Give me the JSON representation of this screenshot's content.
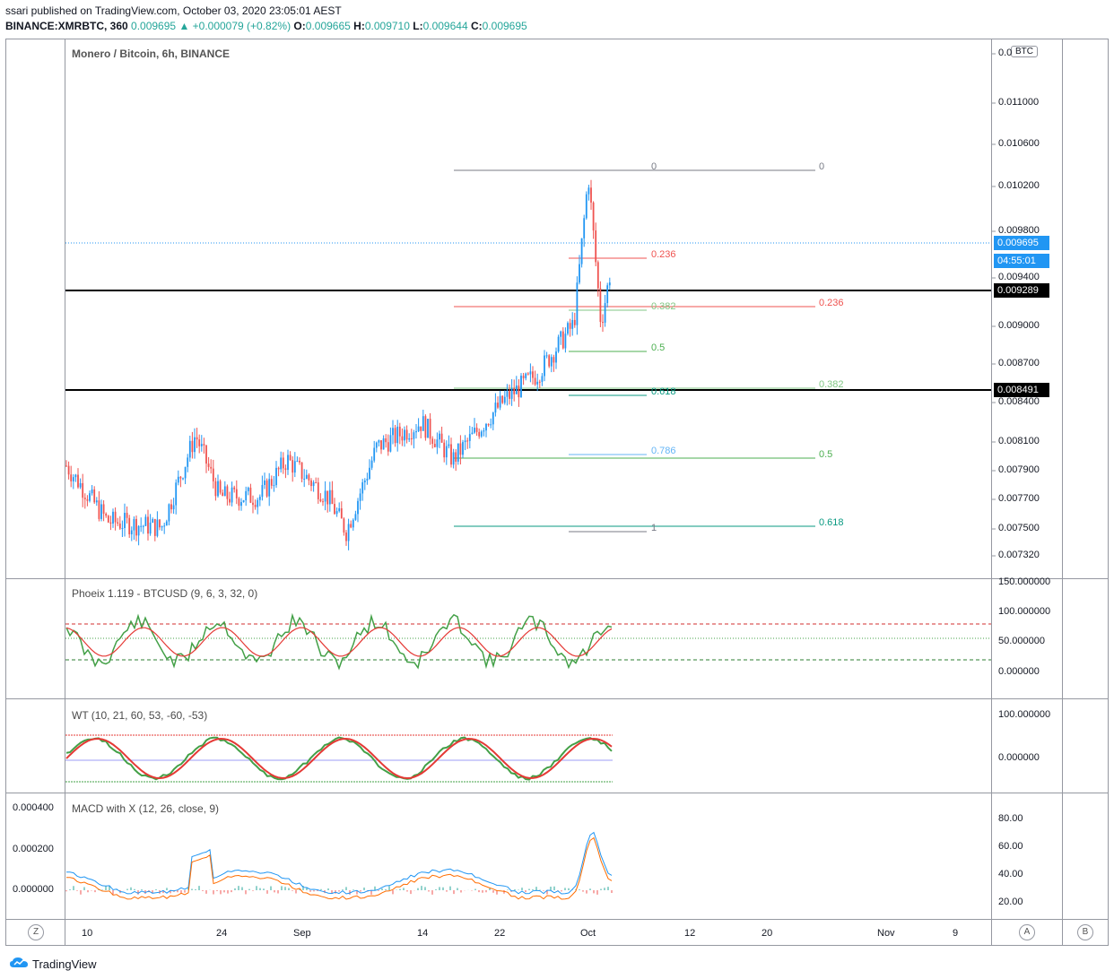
{
  "header": {
    "publisher": "ssari published on TradingView.com, October 03, 2020 23:05:01 AEST",
    "symbol": "BINANCE:XMRBTC, 360",
    "last": "0.009695",
    "change": "▲ +0.000079 (+0.82%)",
    "open_label": "O:",
    "open": "0.009665",
    "high_label": "H:",
    "high": "0.009710",
    "low_label": "L:",
    "low": "0.009644",
    "close_label": "C:",
    "close": "0.009695"
  },
  "main_pane": {
    "title": "Monero / Bitcoin, 6h, BINANCE",
    "currency_badge": "BTC",
    "price_ticks": [
      "0.0",
      "0.011000",
      "0.010600",
      "0.010200",
      "0.009800",
      "0.009400",
      "0.009000",
      "0.008700",
      "0.008400",
      "0.008100",
      "0.007900",
      "0.007700",
      "0.007500",
      "0.007320"
    ],
    "last_price_tag": "0.009695",
    "countdown_tag": "04:55:01",
    "hline_upper_tag": "0.009289",
    "hline_lower_tag": "0.008491",
    "fib_left": [
      "0",
      "0.236",
      "0.382",
      "0.5",
      "0.618",
      "0.786",
      "1"
    ],
    "fib_right": [
      "0",
      "0.236",
      "0.382",
      "0.5",
      "0.618"
    ]
  },
  "phoeix_pane": {
    "title": "Phoeix 1.119 - BTCUSD (9, 6, 3, 32, 0)",
    "ticks": [
      "150.000000",
      "100.000000",
      "50.000000",
      "0.000000"
    ]
  },
  "wt_pane": {
    "title": "WT (10, 21, 60, 53, -60, -53)",
    "ticks": [
      "100.000000",
      "0.000000"
    ]
  },
  "macd_pane": {
    "title": "MACD with X (12, 26, close, 9)",
    "left_ticks": [
      "0.000400",
      "0.000200",
      "0.000000"
    ],
    "right_ticks": [
      "80.00",
      "60.00",
      "40.00",
      "20.00"
    ]
  },
  "x_axis": [
    "10",
    "24",
    "Sep",
    "14",
    "22",
    "Oct",
    "12",
    "20",
    "Nov",
    "9"
  ],
  "corner_buttons": {
    "left": "Z",
    "right_a": "A",
    "right_b": "B"
  },
  "footer": {
    "brand": "TradingView"
  },
  "colors": {
    "up": "#2196f3",
    "down": "#ef5350",
    "accent": "#26a69a"
  }
}
